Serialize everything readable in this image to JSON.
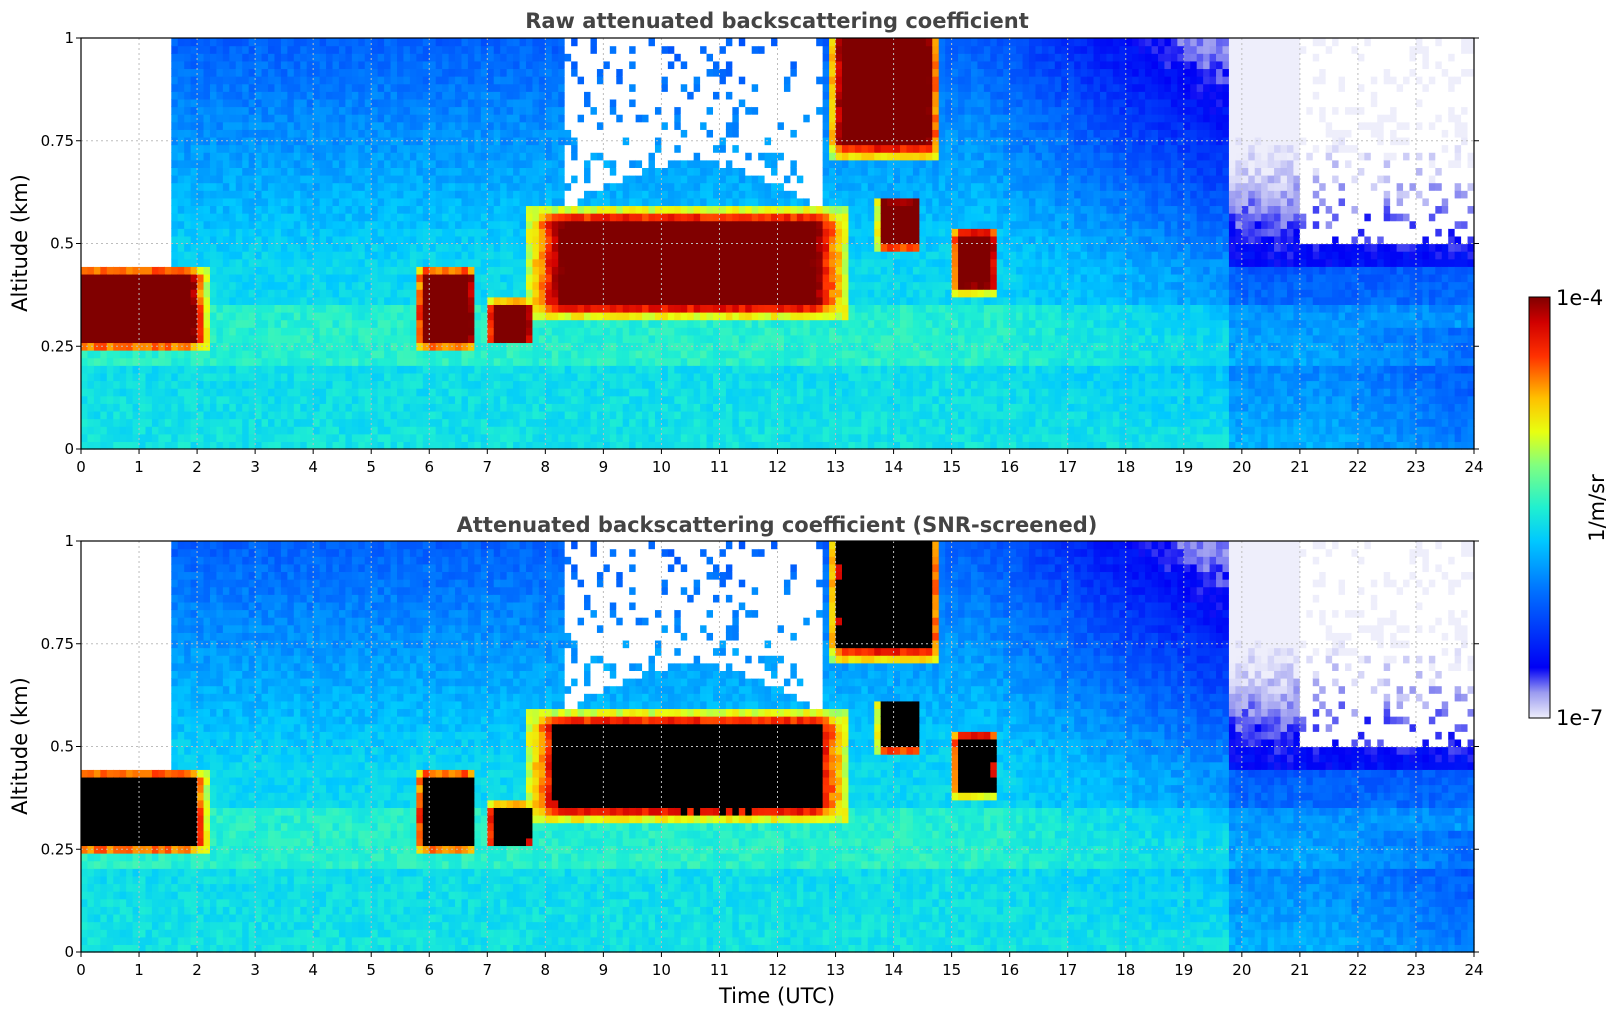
{
  "chart_data": [
    {
      "type": "heatmap",
      "title": "Raw attenuated backscattering coefficient",
      "ylabel": "Altitude (km)",
      "xlabel": "",
      "xlim": [
        0,
        24
      ],
      "ylim": [
        0,
        1
      ],
      "x_ticks": [
        "0",
        "1",
        "2",
        "3",
        "4",
        "5",
        "6",
        "7",
        "8",
        "9",
        "10",
        "11",
        "12",
        "13",
        "14",
        "15",
        "16",
        "17",
        "18",
        "19",
        "20",
        "21",
        "22",
        "23",
        "24"
      ],
      "y_ticks": [
        "0",
        "0.25",
        "0.5",
        "0.75",
        "1"
      ],
      "grid": true,
      "screened": false,
      "features": [
        {
          "t": [
            0.0,
            1.9
          ],
          "alt": [
            0.27,
            0.42
          ],
          "level": "1e-4"
        },
        {
          "t": [
            5.9,
            6.7
          ],
          "alt": [
            0.27,
            0.42
          ],
          "level": "5e-5"
        },
        {
          "t": [
            7.1,
            7.7
          ],
          "alt": [
            0.27,
            0.35
          ],
          "level": "5e-5"
        },
        {
          "t": [
            8.3,
            12.6
          ],
          "alt": [
            0.36,
            0.55
          ],
          "level": "1e-4"
        },
        {
          "t": [
            13.1,
            14.6
          ],
          "alt": [
            0.75,
            1.0
          ],
          "level": "1e-4"
        },
        {
          "t": [
            13.8,
            14.4
          ],
          "alt": [
            0.5,
            0.6
          ],
          "level": "5e-5"
        },
        {
          "t": [
            15.1,
            15.7
          ],
          "alt": [
            0.4,
            0.52
          ],
          "level": "5e-5"
        }
      ]
    },
    {
      "type": "heatmap",
      "title": "Attenuated backscattering coefficient (SNR-screened)",
      "ylabel": "Altitude (km)",
      "xlabel": "Time (UTC)",
      "xlim": [
        0,
        24
      ],
      "ylim": [
        0,
        1
      ],
      "x_ticks": [
        "0",
        "1",
        "2",
        "3",
        "4",
        "5",
        "6",
        "7",
        "8",
        "9",
        "10",
        "11",
        "12",
        "13",
        "14",
        "15",
        "16",
        "17",
        "18",
        "19",
        "20",
        "21",
        "22",
        "23",
        "24"
      ],
      "y_ticks": [
        "0",
        "0.25",
        "0.5",
        "0.75",
        "1"
      ],
      "grid": true,
      "screened": true,
      "features": [
        {
          "t": [
            0.0,
            1.9
          ],
          "alt": [
            0.27,
            0.42
          ],
          "level": "saturated"
        },
        {
          "t": [
            5.9,
            6.7
          ],
          "alt": [
            0.27,
            0.42
          ],
          "level": "saturated"
        },
        {
          "t": [
            7.1,
            7.7
          ],
          "alt": [
            0.27,
            0.35
          ],
          "level": "saturated"
        },
        {
          "t": [
            8.3,
            12.6
          ],
          "alt": [
            0.36,
            0.55
          ],
          "level": "saturated"
        },
        {
          "t": [
            13.1,
            14.6
          ],
          "alt": [
            0.75,
            1.0
          ],
          "level": "saturated"
        },
        {
          "t": [
            13.8,
            14.4
          ],
          "alt": [
            0.5,
            0.6
          ],
          "level": "saturated"
        },
        {
          "t": [
            15.1,
            15.7
          ],
          "alt": [
            0.4,
            0.52
          ],
          "level": "saturated"
        }
      ]
    }
  ],
  "colorbar": {
    "label": "1/m/sr",
    "max_label": "1e-4",
    "min_label": "1e-7",
    "colormap": "jet",
    "scale": "log"
  },
  "colors": {
    "missing": "#ffffff",
    "saturated": "#000000",
    "title": "#444444"
  }
}
